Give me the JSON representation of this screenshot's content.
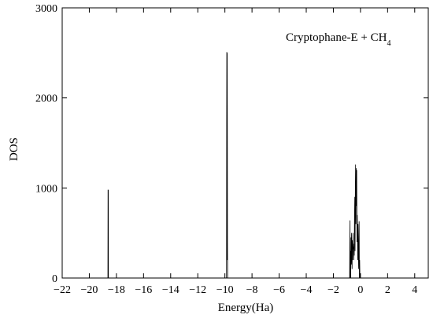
{
  "chart_data": {
    "type": "line",
    "title": "",
    "annotation": {
      "main": "Cryptophane-E + CH",
      "subscript": "4"
    },
    "xlabel": "Energy(Ha)",
    "ylabel": "DOS",
    "xlim": [
      -22,
      5
    ],
    "ylim": [
      0,
      3000
    ],
    "x_ticks": [
      -22,
      -20,
      -18,
      -16,
      -14,
      -12,
      -10,
      -8,
      -6,
      -4,
      -2,
      0,
      2,
      4
    ],
    "x_tick_labels": [
      "−22",
      "−20",
      "−18",
      "−16",
      "−14",
      "−12",
      "−10",
      "−8",
      "−6",
      "−4",
      "−2",
      "0",
      "2",
      "4"
    ],
    "y_ticks": [
      0,
      1000,
      2000,
      3000
    ],
    "y_tick_labels": [
      "0",
      "1000",
      "2000",
      "3000"
    ],
    "grid": false,
    "series": [
      {
        "x": [
          -18.63,
          -18.62,
          -18.61,
          -18.6,
          -18.59,
          -18.58,
          -9.88,
          -9.87,
          -9.86,
          -9.85,
          -9.84,
          -9.83,
          -9.82,
          -9.81,
          -9.8,
          -0.8,
          -0.78,
          -0.76,
          -0.74,
          -0.72,
          -0.7,
          -0.68,
          -0.66,
          -0.64,
          -0.62,
          -0.6,
          -0.58,
          -0.56,
          -0.54,
          -0.52,
          -0.5,
          -0.48,
          -0.46,
          -0.44,
          -0.42,
          -0.4,
          -0.38,
          -0.36,
          -0.34,
          -0.32,
          -0.3,
          -0.28,
          -0.26,
          -0.24,
          -0.22,
          -0.2,
          -0.18,
          -0.16,
          -0.14,
          -0.12,
          -0.1,
          -0.08,
          -0.06,
          -0.04,
          -0.02,
          0.0,
          0.02,
          0.04,
          0.06,
          0.08,
          0.1,
          0.12
        ],
        "y": [
          0,
          980,
          350,
          980,
          0,
          0,
          0,
          1700,
          2510,
          1500,
          200,
          2500,
          1650,
          400,
          0,
          0,
          640,
          0,
          300,
          0,
          450,
          150,
          500,
          250,
          100,
          420,
          200,
          500,
          320,
          350,
          200,
          380,
          250,
          700,
          900,
          300,
          1000,
          1260,
          600,
          1220,
          800,
          1200,
          400,
          700,
          500,
          200,
          600,
          300,
          100,
          400,
          630,
          0,
          200,
          0,
          0,
          0,
          0,
          0,
          0,
          0,
          0,
          0
        ]
      }
    ]
  }
}
